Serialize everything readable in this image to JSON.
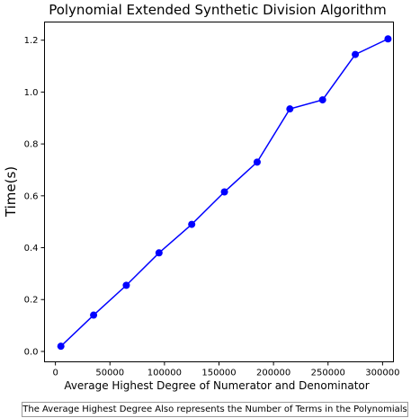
{
  "chart_data": {
    "type": "line",
    "title": "Polynomial Extended Synthetic Division Algorithm",
    "xlabel": "Average Highest Degree of Numerator and Denominator",
    "ylabel": "Time(s)",
    "xlim": [
      -10000,
      310000
    ],
    "ylim": [
      -0.04,
      1.27
    ],
    "xticks": [
      0,
      50000,
      100000,
      150000,
      200000,
      250000,
      300000
    ],
    "yticks": [
      0.0,
      0.2,
      0.4,
      0.6,
      0.8,
      1.0,
      1.2
    ],
    "grid": false,
    "color": "#0000ff",
    "x": [
      5000,
      35000,
      65000,
      95000,
      125000,
      155000,
      185000,
      215000,
      245000,
      275000,
      305000
    ],
    "y": [
      0.02,
      0.14,
      0.255,
      0.38,
      0.49,
      0.615,
      0.73,
      0.935,
      0.97,
      1.145,
      1.205
    ]
  },
  "footnote": "The Average Highest Degree Also represents the Number of Terms in the Polynomials"
}
